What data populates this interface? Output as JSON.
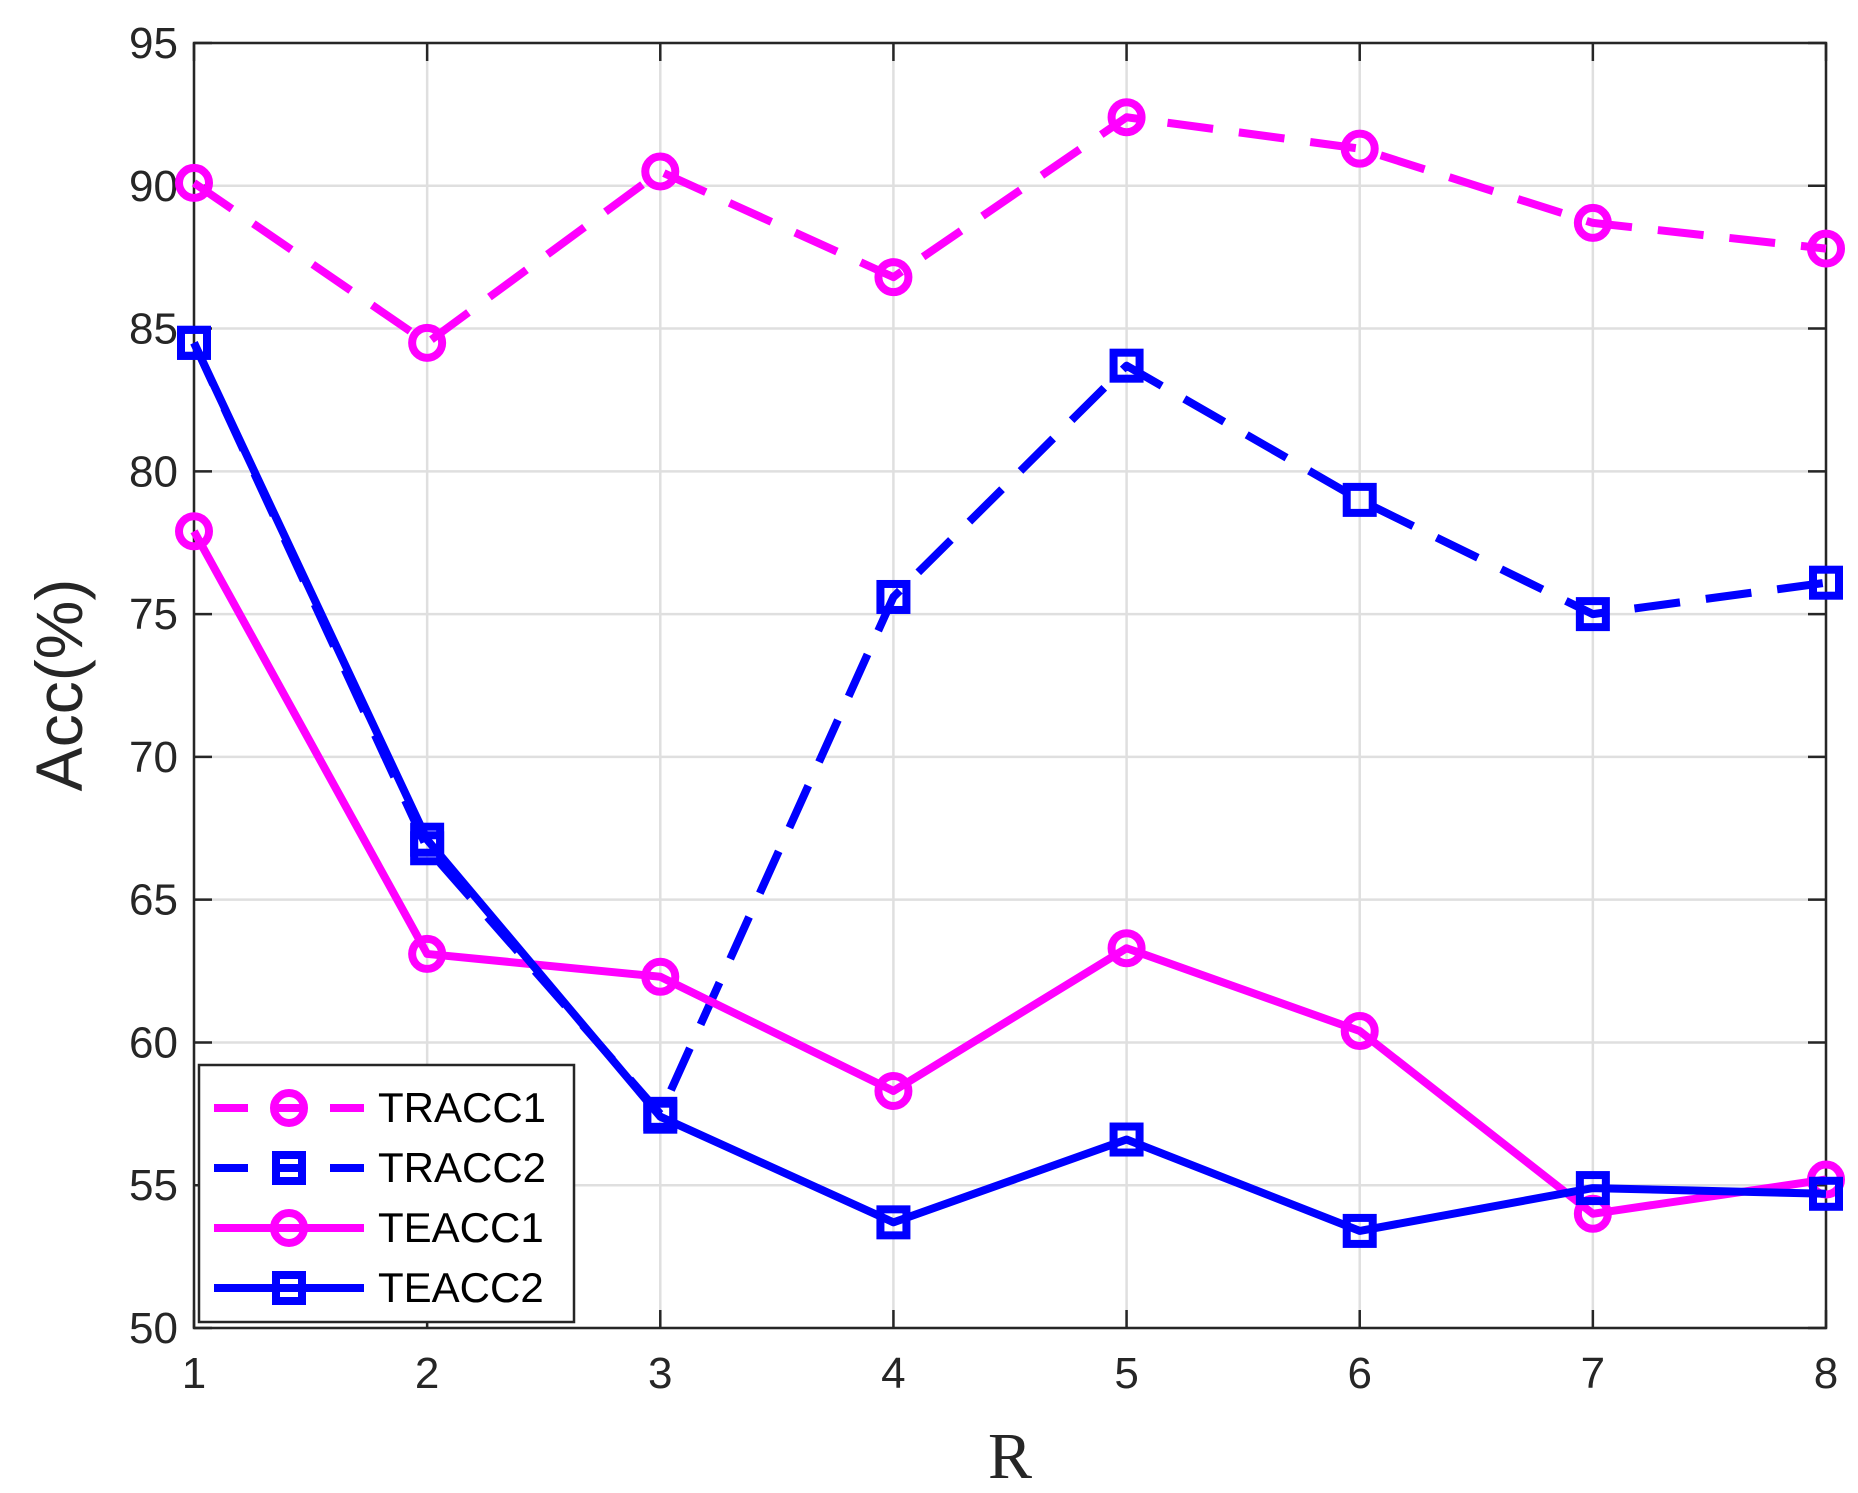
{
  "chart_data": {
    "type": "line",
    "title": "",
    "xlabel": "R",
    "ylabel": "Acc(%)",
    "x": [
      1,
      2,
      3,
      4,
      5,
      6,
      7,
      8
    ],
    "xlim": [
      1,
      8
    ],
    "ylim": [
      50,
      95
    ],
    "xticks": [
      "1",
      "2",
      "3",
      "4",
      "5",
      "6",
      "7",
      "8"
    ],
    "yticks": [
      "50",
      "55",
      "60",
      "65",
      "70",
      "75",
      "80",
      "85",
      "90",
      "95"
    ],
    "grid": true,
    "legend_position": "bottom-left",
    "series": [
      {
        "name": "TRACC1",
        "color": "#ff00ff",
        "dash": "dashed",
        "marker": "circle",
        "values": [
          90.1,
          84.5,
          90.5,
          86.8,
          92.4,
          91.3,
          88.7,
          87.8
        ]
      },
      {
        "name": "TRACC2",
        "color": "#0000ff",
        "dash": "dashed",
        "marker": "square",
        "values": [
          84.5,
          66.8,
          57.5,
          75.6,
          83.7,
          79.0,
          75.0,
          76.1
        ]
      },
      {
        "name": "TEACC1",
        "color": "#ff00ff",
        "dash": "solid",
        "marker": "circle",
        "values": [
          77.9,
          63.1,
          62.3,
          58.3,
          63.3,
          60.4,
          54.0,
          55.2
        ]
      },
      {
        "name": "TEACC2",
        "color": "#0000ff",
        "dash": "solid",
        "marker": "square",
        "values": [
          84.5,
          67.1,
          57.4,
          53.7,
          56.6,
          53.4,
          54.9,
          54.7
        ]
      }
    ]
  }
}
